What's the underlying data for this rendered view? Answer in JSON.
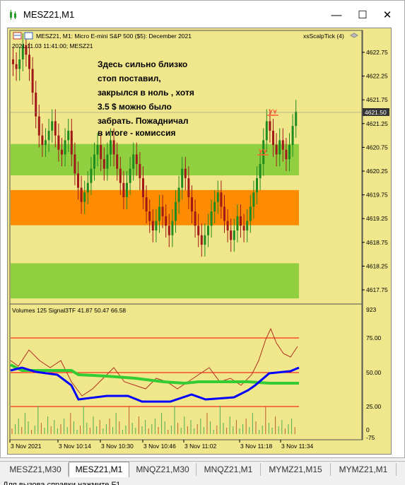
{
  "window": {
    "title": "MESZ21,M1",
    "min_label": "—",
    "max_label": "☐",
    "close_label": "✕"
  },
  "chart": {
    "header": "MESZ21, M1:  Micro E-mini S&P 500 ($5): December 2021",
    "indicator_label": "xsScalpTick (4)",
    "datetime_label": "2021.11.03 11:41:00; MESZ21",
    "comment": [
      "Здесь сильно близко",
      "стоп поставил,",
      "закрылся в ноль , хотя",
      "3.5 $ можно было",
      "забрать. Пожадничал",
      "в итоге   - комиссия"
    ],
    "current_price": "4621.50",
    "price_ticks": [
      "4622.75",
      "4622.25",
      "4621.75",
      "4621.25",
      "4620.75",
      "4620.25",
      "4619.75",
      "4619.25",
      "4618.75",
      "4618.25",
      "4617.75"
    ],
    "sub_label": "Volumes 125 Signal3TF 41.87 50.47 66.58",
    "sub_ticks": [
      "923",
      "75.00",
      "50.00",
      "25.00",
      "0",
      "-75"
    ],
    "time_ticks": [
      "3 Nov 2021",
      "3 Nov 10:14",
      "3 Nov 10:30",
      "3 Nov 10:46",
      "3 Nov 11:02",
      "3 Nov 11:18",
      "3 Nov 11:34"
    ],
    "colors": {
      "background": "#f0e68c",
      "up_candle": "#1e8c1e",
      "down_candle": "#a01818",
      "zone_green": "#90d040",
      "zone_orange": "#ff8c00",
      "level_red": "#ff0000",
      "blue_line": "#0000ff",
      "green_line": "#33cc33",
      "brown_line": "#b03020"
    },
    "zones": [
      {
        "color": "green",
        "from": 4620.16,
        "to": 4620.82
      },
      {
        "color": "orange",
        "from": 4619.11,
        "to": 4619.85
      },
      {
        "color": "green",
        "from": 4617.57,
        "to": 4618.31
      }
    ]
  },
  "tabs": [
    "MESZ21,M30",
    "MESZ21,M1",
    "MNQZ21,M30",
    "MNQZ21,M1",
    "MYMZ21,M15",
    "MYMZ21,M1"
  ],
  "active_tab": "MESZ21,M1",
  "status": "Для вызова справки нажмите F1"
}
